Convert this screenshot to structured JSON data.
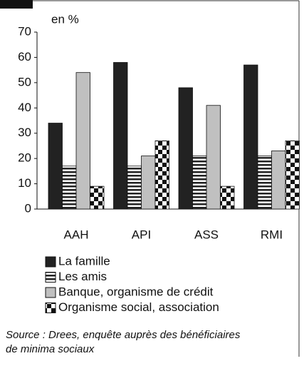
{
  "chart_data": {
    "type": "bar",
    "y_label": "en %",
    "categories": [
      "AAH",
      "API",
      "ASS",
      "RMI"
    ],
    "series": [
      {
        "name": "La famille",
        "color": "#222222",
        "pattern": "solid",
        "values": [
          34,
          58,
          48,
          57
        ]
      },
      {
        "name": "Les amis",
        "color": "#222222",
        "pattern": "stripes",
        "values": [
          17,
          17,
          21,
          21
        ]
      },
      {
        "name": "Banque, organisme de crédit",
        "color": "#c0c0c0",
        "pattern": "solid",
        "values": [
          54,
          21,
          41,
          23
        ]
      },
      {
        "name": "Organisme social, association",
        "color": "#111111",
        "pattern": "checker",
        "values": [
          9,
          27,
          9,
          27
        ]
      }
    ],
    "ylim": [
      0,
      70
    ],
    "yticks": [
      0,
      10,
      20,
      30,
      40,
      50,
      60,
      70
    ],
    "grid": false,
    "source": [
      "Source : Drees, enquête auprès des bénéficiaires",
      "de minima sociaux"
    ]
  }
}
